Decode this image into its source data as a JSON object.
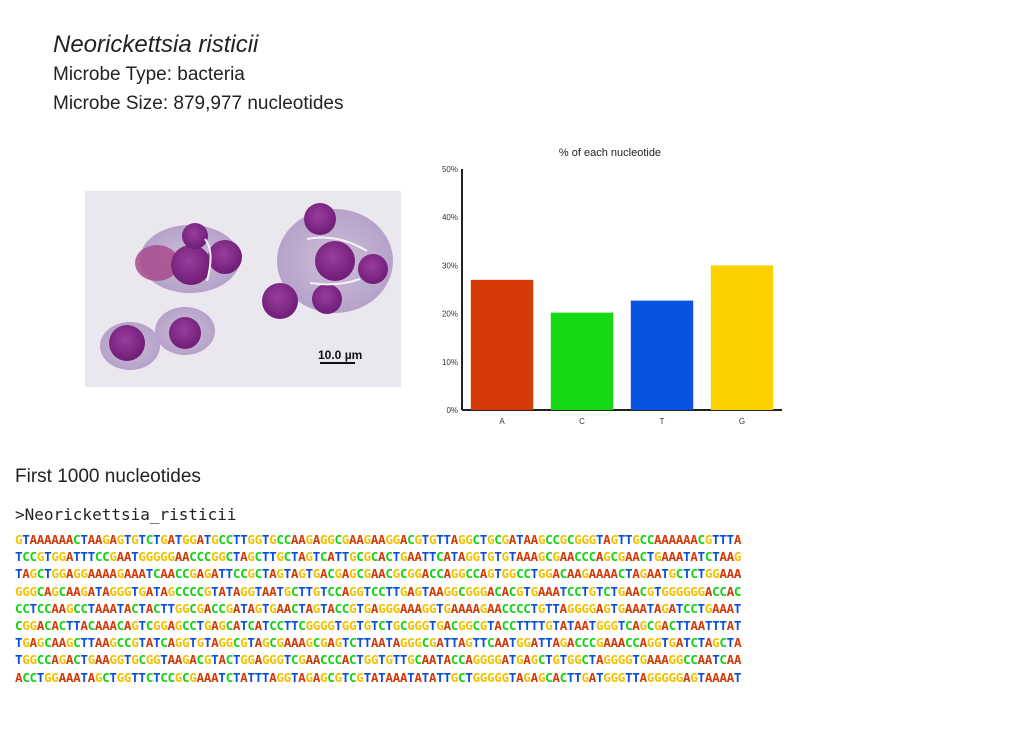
{
  "header": {
    "species": "Neorickettsia risticii",
    "type_label": "Microbe Type: bacteria",
    "size_label": "Microbe Size: 879,977 nucleotides"
  },
  "micrograph": {
    "scale_label": "10.0 µm"
  },
  "chart_data": {
    "type": "bar",
    "title": "% of each nucleotide",
    "categories": [
      "A",
      "C",
      "T",
      "G"
    ],
    "values": [
      27,
      20.2,
      22.7,
      30
    ],
    "ylim": [
      0,
      50
    ],
    "yticks": [
      "0%",
      "10%",
      "20%",
      "30%",
      "40%",
      "50%"
    ],
    "xlabel": "",
    "ylabel": "",
    "grid": false,
    "colors": [
      "#d63a06",
      "#14d914",
      "#0a52e0",
      "#fbd100"
    ]
  },
  "sequence": {
    "title": "First 1000 nucleotides",
    "header": ">Neorickettsia_risticii",
    "lines": [
      "GTAAAAAACTAAGAGTGTCTGATGGATGCCTTGGTGCCAAGAGGCGAAGAAGGACGTGTTAGGCTGCGATAAGCCGCGGGTAGTTGCCAAAAAACGTTTA",
      "TCCGTGGATTTCCGAATGGGGGAACCCGGCTAGCTTGCTAGTCATTGCGCACTGAATTCATAGGTGTGTAAAGCGAACCCAGCGAACTGAAATATCTAAG",
      "TAGCTGGAGGAAAAGAAATCAACCGAGATTCCGCTAGTAGTGACGAGCGAACGCGGACCAGGCCAGTGGCCTGGACAAGAAAACTAGAATGCTCTGGAAA",
      "GGGCAGCAAGATAGGGTGATAGCCCCGTATAGGTAATGCTTGTCCAGGTCCTTGAGTAAGGCGGGACACGTGAAATCCTGTCTGAACGTGGGGGGACCAC",
      "CCTCCAAGCCTAAATACTACTTGGCGACCGATAGTGAACTAGTACCGTGAGGGAAAGGTGAAAAGAACCCCTGTTAGGGGAGTGAAATAGATCCTGAAAT",
      "CGGACACTTACAAACAGTCGGAGCCTGAGCATCATCCTTCGGGGTGGTGTCTGCGGGTGACGGCGTACCTTTTGTATAATGGGTCAGCGACTTAATTTAT",
      "TGAGCAAGCTTAAGCCGTATCAGGTGTAGGCGTAGCGAAAGCGAGTCTTAATAGGGCGATTAGTTCAATGGATTAGACCCGAAACCAGGTGATCTAGCTA",
      "TGGCCAGACTGAAGGTGCGGTAAGACGTACTGGAGGGTCGAACCCACTGGTGTTGCAATACCAGGGGATGAGCTGTGGCTAGGGGTGAAAGGCCAATCAA",
      "ACCTGGAAATAGCTGGTTCTCCGCGAAATCTATTTAGGTAGAGCGTCGTATAAATATATTGCTGGGGGTAGAGCACTTGATGGGTTAGGGGGAGTAAAAT"
    ]
  }
}
